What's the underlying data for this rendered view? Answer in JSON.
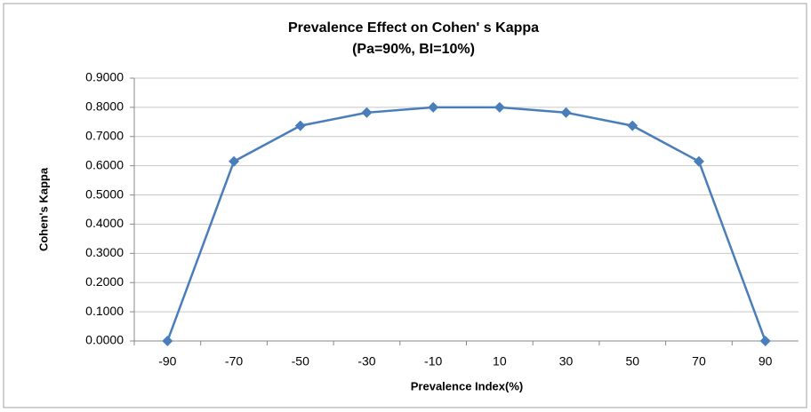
{
  "chart_data": {
    "type": "line",
    "title": "Prevalence Effect on Cohen' s Kappa",
    "subtitle": "(Pa=90%, BI=10%)",
    "x_label": "Prevalence Index(%)",
    "y_label": "Cohen's Kappa",
    "categories": [
      "-90",
      "-70",
      "-50",
      "-30",
      "-10",
      "10",
      "30",
      "50",
      "70",
      "90"
    ],
    "series": [
      {
        "name": "Cohen's Kappa",
        "color": "#4a7ebb",
        "values": [
          0,
          0.615,
          0.737,
          0.782,
          0.8,
          0.8,
          0.782,
          0.737,
          0.615,
          0
        ]
      }
    ],
    "ylim": [
      0,
      0.9
    ],
    "yticks": [
      {
        "value": 0,
        "label": "0.0000"
      },
      {
        "value": 0.1,
        "label": "0.1000"
      },
      {
        "value": 0.2,
        "label": "0.2000"
      },
      {
        "value": 0.3,
        "label": "0.3000"
      },
      {
        "value": 0.4,
        "label": "0.4000"
      },
      {
        "value": 0.5,
        "label": "0.5000"
      },
      {
        "value": 0.6,
        "label": "0.6000"
      },
      {
        "value": 0.7,
        "label": "0.7000"
      },
      {
        "value": 0.8,
        "label": "0.8000"
      },
      {
        "value": 0.9,
        "label": "0.9000"
      }
    ],
    "grid": true
  }
}
